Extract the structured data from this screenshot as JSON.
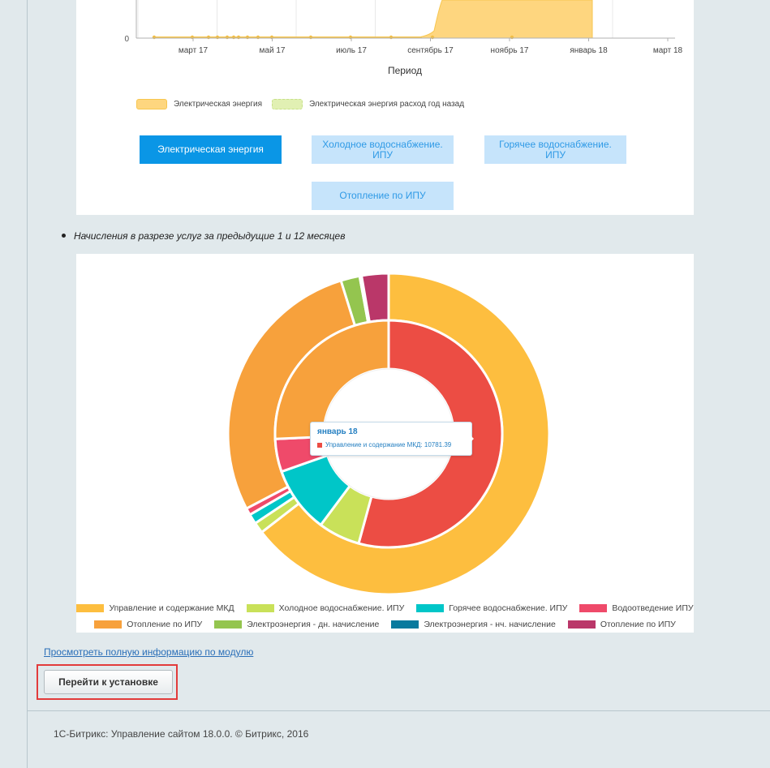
{
  "top_chart": {
    "chart_data": {
      "type": "area",
      "x_ticks": [
        "март 17",
        "май 17",
        "июль 17",
        "сентябрь 17",
        "ноябрь 17",
        "январь 18",
        "март 18"
      ],
      "y_ticks": [
        "0"
      ],
      "xlabel": "Период",
      "series": [
        {
          "name": "Электрическая энергия",
          "color": "#fed67f"
        },
        {
          "name": "Электрическая энергия расход год назад",
          "color": "#e1f0b3"
        }
      ]
    },
    "legend": {
      "series1": "Электрическая энергия",
      "series2": "Электрическая энергия расход год назад"
    }
  },
  "service_buttons": [
    {
      "label": "Электрическая энергия",
      "active": true
    },
    {
      "label": "Холодное водоснабжение. ИПУ",
      "active": false
    },
    {
      "label": "Горячее водоснабжение. ИПУ",
      "active": false
    },
    {
      "label": "Отопление по ИПУ",
      "active": false
    }
  ],
  "section": {
    "bullet_text": "Начисления в разрезе услуг за предыдущие 1 и 12 месяцев"
  },
  "pie_chart": {
    "chart_data": {
      "type": "pie",
      "rings": [
        {
          "name": "outer",
          "slices": [
            {
              "label": "Управление и содержание МКД",
              "value": 64.5,
              "color": "#fdbe3f"
            },
            {
              "label": "Холодное водоснабжение. ИПУ",
              "value": 1.1,
              "color": "#c9e159"
            },
            {
              "label": "Горячее водоснабжение. ИПУ",
              "value": 1.0,
              "color": "#00c6c8"
            },
            {
              "label": "Водоотведение ИПУ",
              "value": 0.7,
              "color": "#ef4a6a"
            },
            {
              "label": "Отопление по ИПУ",
              "value": 27.9,
              "color": "#f7a13c"
            },
            {
              "label": "Электроэнергия - дн. начисление",
              "value": 1.9,
              "color": "#94c54f"
            },
            {
              "label": "Электроэнергия - нч. начисление",
              "value": 0.2,
              "color": "#087a9e"
            },
            {
              "label": "Отопление по ИПУ",
              "value": 2.7,
              "color": "#ba3769"
            }
          ]
        },
        {
          "name": "inner",
          "slices": [
            {
              "label": "Управление и содержание МКД",
              "value": 10781.39,
              "color": "#ec4d44"
            },
            {
              "label": "Холодное водоснабжение. ИПУ",
              "value": 1180,
              "color": "#c9e159"
            },
            {
              "label": "Горячее водоснабжение. ИПУ",
              "value": 1870,
              "color": "#00c6c8"
            },
            {
              "label": "Водоотведение ИПУ",
              "value": 930,
              "color": "#ef4a6a"
            },
            {
              "label": "Отопление по ИПУ",
              "value": 5110,
              "color": "#f7a13c"
            }
          ]
        }
      ]
    },
    "tooltip": {
      "title": "январь 18",
      "text": "Управление и содержание МКД: 10781.39"
    },
    "legend": [
      {
        "label": "Управление и содержание МКД",
        "color": "#fdbe3f"
      },
      {
        "label": "Холодное водоснабжение. ИПУ",
        "color": "#c9e159"
      },
      {
        "label": "Горячее водоснабжение. ИПУ",
        "color": "#00c6c8"
      },
      {
        "label": "Водоотведение ИПУ",
        "color": "#ef4a6a"
      },
      {
        "label": "Отопление по ИПУ",
        "color": "#f7a13c"
      },
      {
        "label": "Электроэнергия - дн. начисление",
        "color": "#94c54f"
      },
      {
        "label": "Электроэнергия - нч. начисление",
        "color": "#087a9e"
      },
      {
        "label": "Отопление по ИПУ",
        "color": "#ba3769"
      }
    ]
  },
  "links": {
    "more_info": "Просмотреть полную информацию по модулю"
  },
  "actions": {
    "install": "Перейти к установке"
  },
  "footer": {
    "copyright": "1С-Битрикс: Управление сайтом 18.0.0. © Битрикс, 2016"
  }
}
